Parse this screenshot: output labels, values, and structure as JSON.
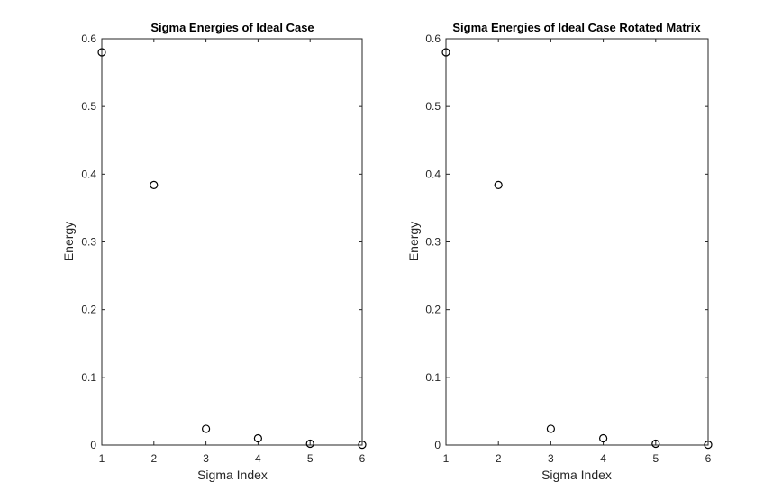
{
  "chart_data": [
    {
      "type": "scatter",
      "title": "Sigma Energies of Ideal Case",
      "xlabel": "Sigma Index",
      "ylabel": "Energy",
      "xlim": [
        1,
        6
      ],
      "ylim": [
        0,
        0.6
      ],
      "xticks": [
        "1",
        "2",
        "3",
        "4",
        "5",
        "6"
      ],
      "yticks": [
        "0",
        "0.1",
        "0.2",
        "0.3",
        "0.4",
        "0.5",
        "0.6"
      ],
      "grid": false,
      "marker": "open-circle",
      "marker_color": "#000000",
      "series": [
        {
          "x": [
            1,
            2,
            3,
            4,
            5,
            6
          ],
          "values": [
            0.58,
            0.384,
            0.024,
            0.01,
            0.002,
            0.0005
          ]
        }
      ]
    },
    {
      "type": "scatter",
      "title": "Sigma Energies of Ideal Case Rotated Matrix",
      "xlabel": "Sigma Index",
      "ylabel": "Energy",
      "xlim": [
        1,
        6
      ],
      "ylim": [
        0,
        0.6
      ],
      "xticks": [
        "1",
        "2",
        "3",
        "4",
        "5",
        "6"
      ],
      "yticks": [
        "0",
        "0.1",
        "0.2",
        "0.3",
        "0.4",
        "0.5",
        "0.6"
      ],
      "grid": false,
      "marker": "open-circle",
      "marker_color": "#000000",
      "series": [
        {
          "x": [
            1,
            2,
            3,
            4,
            5,
            6
          ],
          "values": [
            0.58,
            0.384,
            0.024,
            0.01,
            0.002,
            0.0005
          ]
        }
      ]
    }
  ]
}
